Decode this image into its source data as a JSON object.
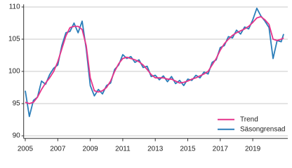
{
  "chart_data": {
    "type": "line",
    "x": [
      2005,
      2005.25,
      2005.5,
      2005.75,
      2006,
      2006.25,
      2006.5,
      2006.75,
      2007,
      2007.25,
      2007.5,
      2007.75,
      2008,
      2008.25,
      2008.5,
      2008.75,
      2009,
      2009.25,
      2009.5,
      2009.75,
      2010,
      2010.25,
      2010.5,
      2010.75,
      2011,
      2011.25,
      2011.5,
      2011.75,
      2012,
      2012.25,
      2012.5,
      2012.75,
      2013,
      2013.25,
      2013.5,
      2013.75,
      2014,
      2014.25,
      2014.5,
      2014.75,
      2015,
      2015.25,
      2015.5,
      2015.75,
      2016,
      2016.25,
      2016.5,
      2016.75,
      2017,
      2017.25,
      2017.5,
      2017.75,
      2018,
      2018.25,
      2018.5,
      2018.75,
      2019,
      2019.25,
      2019.5,
      2019.75,
      2020,
      2020.25,
      2020.5,
      2020.75,
      2020.9
    ],
    "series": [
      {
        "name": "Säsongrensad",
        "color": "#2a7db9",
        "values": [
          97.0,
          93.0,
          95.5,
          96.0,
          98.5,
          98.0,
          99.5,
          100.5,
          101.0,
          104.0,
          106.0,
          106.2,
          107.5,
          106.0,
          107.8,
          103.5,
          97.8,
          96.2,
          97.2,
          96.5,
          97.8,
          98.2,
          100.3,
          101.0,
          102.6,
          102.0,
          102.3,
          101.4,
          101.8,
          100.6,
          100.8,
          99.2,
          99.4,
          98.7,
          99.3,
          98.4,
          99.2,
          98.1,
          98.6,
          97.8,
          98.8,
          98.6,
          99.4,
          99.0,
          99.9,
          99.6,
          101.4,
          101.8,
          103.7,
          104.0,
          105.4,
          105.2,
          106.4,
          105.8,
          106.9,
          106.6,
          108.0,
          109.8,
          108.6,
          107.8,
          106.8,
          102.0,
          104.8,
          104.6,
          105.8
        ]
      },
      {
        "name": "Trend",
        "color": "#e6338a",
        "values": [
          95.2,
          95.0,
          95.2,
          96.0,
          97.2,
          98.2,
          99.0,
          100.0,
          101.5,
          103.5,
          105.5,
          106.8,
          107.0,
          107.0,
          106.5,
          104.0,
          99.0,
          97.0,
          96.8,
          97.0,
          97.5,
          98.5,
          100.0,
          101.2,
          102.0,
          102.2,
          102.0,
          101.8,
          101.5,
          101.0,
          100.3,
          99.5,
          99.0,
          99.0,
          99.0,
          98.8,
          98.8,
          98.5,
          98.2,
          98.3,
          98.5,
          98.8,
          99.0,
          99.3,
          99.6,
          100.0,
          101.0,
          102.0,
          103.3,
          104.3,
          105.0,
          105.6,
          106.0,
          106.3,
          106.6,
          107.0,
          107.6,
          108.3,
          108.5,
          108.0,
          107.3,
          105.0,
          104.8,
          105.0,
          105.2
        ]
      }
    ],
    "xlim": [
      2004.9,
      2021.0
    ],
    "xticks": [
      2005,
      2007,
      2009,
      2011,
      2013,
      2015,
      2017,
      2019
    ],
    "ylim": [
      89.6,
      110.4
    ],
    "yticks": [
      90,
      95,
      100,
      105,
      110
    ],
    "grid": true,
    "legend": "lower right"
  }
}
